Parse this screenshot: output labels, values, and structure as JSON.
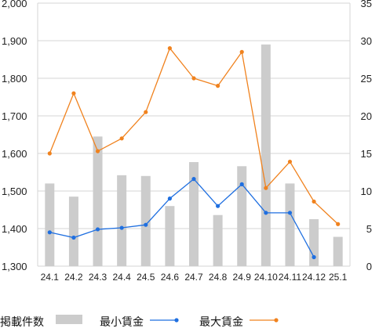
{
  "chart_data": {
    "type": "bar+line",
    "categories": [
      "24.1",
      "24.2",
      "24.3",
      "24.4",
      "24.5",
      "24.6",
      "24.7",
      "24.8",
      "24.9",
      "24.10",
      "24.11",
      "24.12",
      "25.1"
    ],
    "bar_series": {
      "name": "掲載件数",
      "axis": "left",
      "values": [
        1520,
        1485,
        1645,
        1542,
        1540,
        1460,
        1577,
        1436,
        1566,
        1890,
        1520,
        1425,
        1378
      ],
      "color": "#cccccc"
    },
    "line_series": [
      {
        "name": "最小賃金",
        "axis": "right",
        "values": [
          4.5,
          3.8,
          4.9,
          5.1,
          5.5,
          9.0,
          11.6,
          8.0,
          10.9,
          7.1,
          7.1,
          1.2,
          null
        ],
        "color": "#1f6fe0"
      },
      {
        "name": "最大賃金",
        "axis": "right",
        "values": [
          15.0,
          23.0,
          15.3,
          17.0,
          20.5,
          29.0,
          25.0,
          24.0,
          28.5,
          10.4,
          13.9,
          8.6,
          5.6
        ],
        "color": "#f0821e"
      }
    ],
    "y_left": {
      "min": 1300,
      "max": 2000,
      "ticks": [
        "1,300",
        "1,400",
        "1,500",
        "1,600",
        "1,700",
        "1,800",
        "1,900",
        "2,000"
      ]
    },
    "y_right": {
      "min": 0,
      "max": 35,
      "ticks": [
        "0",
        "5",
        "10",
        "15",
        "20",
        "25",
        "30",
        "35"
      ]
    },
    "title": "",
    "xlabel": "",
    "ylabel_left": "",
    "ylabel_right": "",
    "grid": true,
    "legend_position": "bottom-left"
  }
}
